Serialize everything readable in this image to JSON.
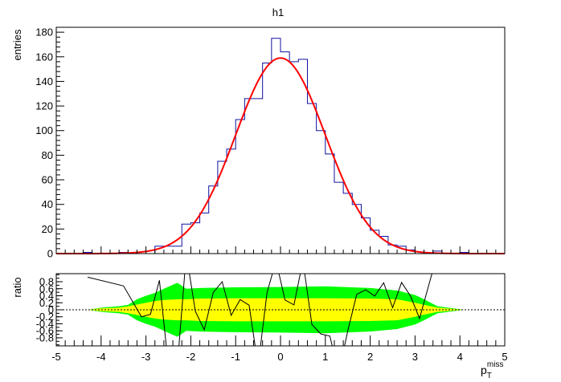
{
  "chart_data": [
    {
      "type": "bar",
      "title": "h1",
      "xlabel": "p_T^miss",
      "ylabel": "entries",
      "xlim": [
        -5,
        5
      ],
      "ylim": [
        0,
        184
      ],
      "bin_width": 0.2,
      "bin_low_edges_start": -5,
      "yticks": [
        0,
        20,
        40,
        60,
        80,
        100,
        120,
        140,
        160,
        180
      ],
      "counts": [
        0,
        0,
        0,
        1,
        0,
        0,
        0,
        1,
        0,
        0,
        0,
        6,
        6,
        6,
        24,
        25,
        33,
        55,
        75,
        85,
        109,
        126,
        126,
        155,
        175,
        164,
        156,
        158,
        122,
        100,
        81,
        58,
        49,
        40,
        29,
        19,
        14,
        7,
        6,
        3,
        0,
        0,
        2,
        0,
        0,
        1,
        0,
        0,
        0,
        0
      ],
      "hist_color": "#1010a0",
      "fit": {
        "name": "gaus",
        "amplitude": 159,
        "mean": 0.0,
        "sigma": 1.0,
        "color": "#ff0000"
      }
    },
    {
      "type": "line",
      "xlabel": "p_T^miss",
      "ylabel": "ratio",
      "xlim": [
        -5,
        5
      ],
      "ylim": [
        -1.03,
        1.03
      ],
      "xticks": [
        "-5",
        "-4",
        "-3",
        "-2",
        "-1",
        "0",
        "1",
        "2",
        "3",
        "4",
        "5"
      ],
      "yticks": [
        "0.8",
        "0.6",
        "0.4",
        "0.2",
        "0",
        "-0.2",
        "-0.4",
        "-0.6",
        "-0.8"
      ],
      "x": [
        -4.3,
        -3.5,
        -3.1,
        -2.9,
        -2.7,
        -2.5,
        -2.3,
        -2.1,
        -1.9,
        -1.7,
        -1.5,
        -1.3,
        -1.1,
        -0.9,
        -0.7,
        -0.5,
        -0.3,
        -0.1,
        0.1,
        0.3,
        0.5,
        0.7,
        0.9,
        1.1,
        1.3,
        1.5,
        1.7,
        1.9,
        2.1,
        2.3,
        2.5,
        2.7,
        2.9,
        3.1,
        3.5
      ],
      "y": [
        0.93,
        0.68,
        -0.2,
        -0.13,
        0.84,
        -1.6,
        -1.6,
        1.6,
        -0.04,
        -0.57,
        0.49,
        0.8,
        -0.16,
        0.29,
        0.13,
        -1.6,
        0.49,
        1.4,
        0.28,
        0.14,
        1.4,
        -0.42,
        -0.69,
        -0.75,
        -1.8,
        -0.6,
        0.44,
        0.57,
        0.39,
        0.77,
        0.06,
        0.78,
        0.39,
        -0.25,
        1.6
      ],
      "band_x": [
        -4.3,
        -4.0,
        -3.6,
        -3.4,
        -3.2,
        -3.0,
        -2.8,
        -2.6,
        -2.3,
        -2.1,
        -1.8,
        -1.0,
        0.0,
        1.0,
        2.0,
        2.6,
        3.0,
        3.2,
        3.5,
        3.8,
        4.1
      ],
      "band_1sigma": [
        0,
        0.04,
        0.06,
        0.1,
        0.15,
        0.2,
        0.25,
        0.28,
        0.3,
        0.3,
        0.32,
        0.33,
        0.33,
        0.33,
        0.32,
        0.3,
        0.2,
        0.14,
        0.06,
        0.03,
        0
      ],
      "band_2sigma": [
        0,
        0.06,
        0.1,
        0.14,
        0.3,
        0.4,
        0.48,
        0.6,
        0.77,
        0.6,
        0.62,
        0.64,
        0.65,
        0.67,
        0.62,
        0.55,
        0.42,
        0.3,
        0.1,
        0.05,
        0
      ],
      "colors": {
        "band_1sigma": "#ffff00",
        "band_2sigma": "#00ff00",
        "line": "#000000"
      }
    }
  ],
  "labels": {
    "title": "h1",
    "top_ylabel": "entries",
    "bottom_ylabel": "ratio",
    "xlabel_main": "p",
    "xlabel_sub": "T",
    "xlabel_sup": "miss"
  }
}
